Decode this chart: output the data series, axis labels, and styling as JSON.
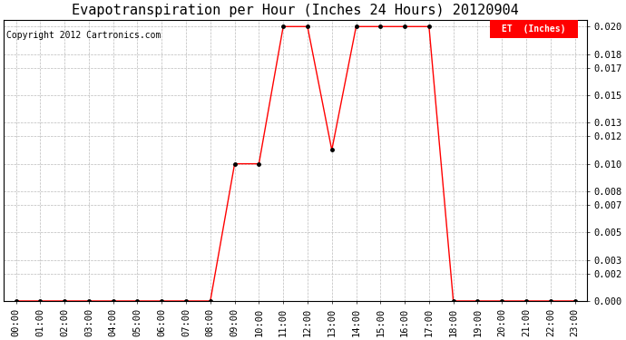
{
  "title": "Evapotranspiration per Hour (Inches 24 Hours) 20120904",
  "copyright": "Copyright 2012 Cartronics.com",
  "legend_label": "ET  (Inches)",
  "legend_bg": "#ff0000",
  "legend_text_color": "#ffffff",
  "line_color": "#ff0000",
  "marker_color": "#000000",
  "background_color": "#ffffff",
  "grid_color": "#bbbbbb",
  "x_labels": [
    "00:00",
    "01:00",
    "02:00",
    "03:00",
    "04:00",
    "05:00",
    "06:00",
    "07:00",
    "08:00",
    "09:00",
    "10:00",
    "11:00",
    "12:00",
    "13:00",
    "14:00",
    "15:00",
    "16:00",
    "17:00",
    "18:00",
    "19:00",
    "20:00",
    "21:00",
    "22:00",
    "23:00"
  ],
  "y_values": [
    0.0,
    0.0,
    0.0,
    0.0,
    0.0,
    0.0,
    0.0,
    0.0,
    0.0,
    0.01,
    0.01,
    0.02,
    0.02,
    0.011,
    0.02,
    0.02,
    0.02,
    0.02,
    0.0,
    0.0,
    0.0,
    0.0,
    0.0,
    0.0
  ],
  "ylim": [
    0.0,
    0.0205
  ],
  "yticks": [
    0.0,
    0.002,
    0.003,
    0.005,
    0.007,
    0.008,
    0.01,
    0.012,
    0.013,
    0.015,
    0.017,
    0.018,
    0.02
  ],
  "figwidth": 6.9,
  "figheight": 3.75,
  "dpi": 100,
  "title_fontsize": 11,
  "copyright_fontsize": 7,
  "tick_fontsize": 7.5
}
